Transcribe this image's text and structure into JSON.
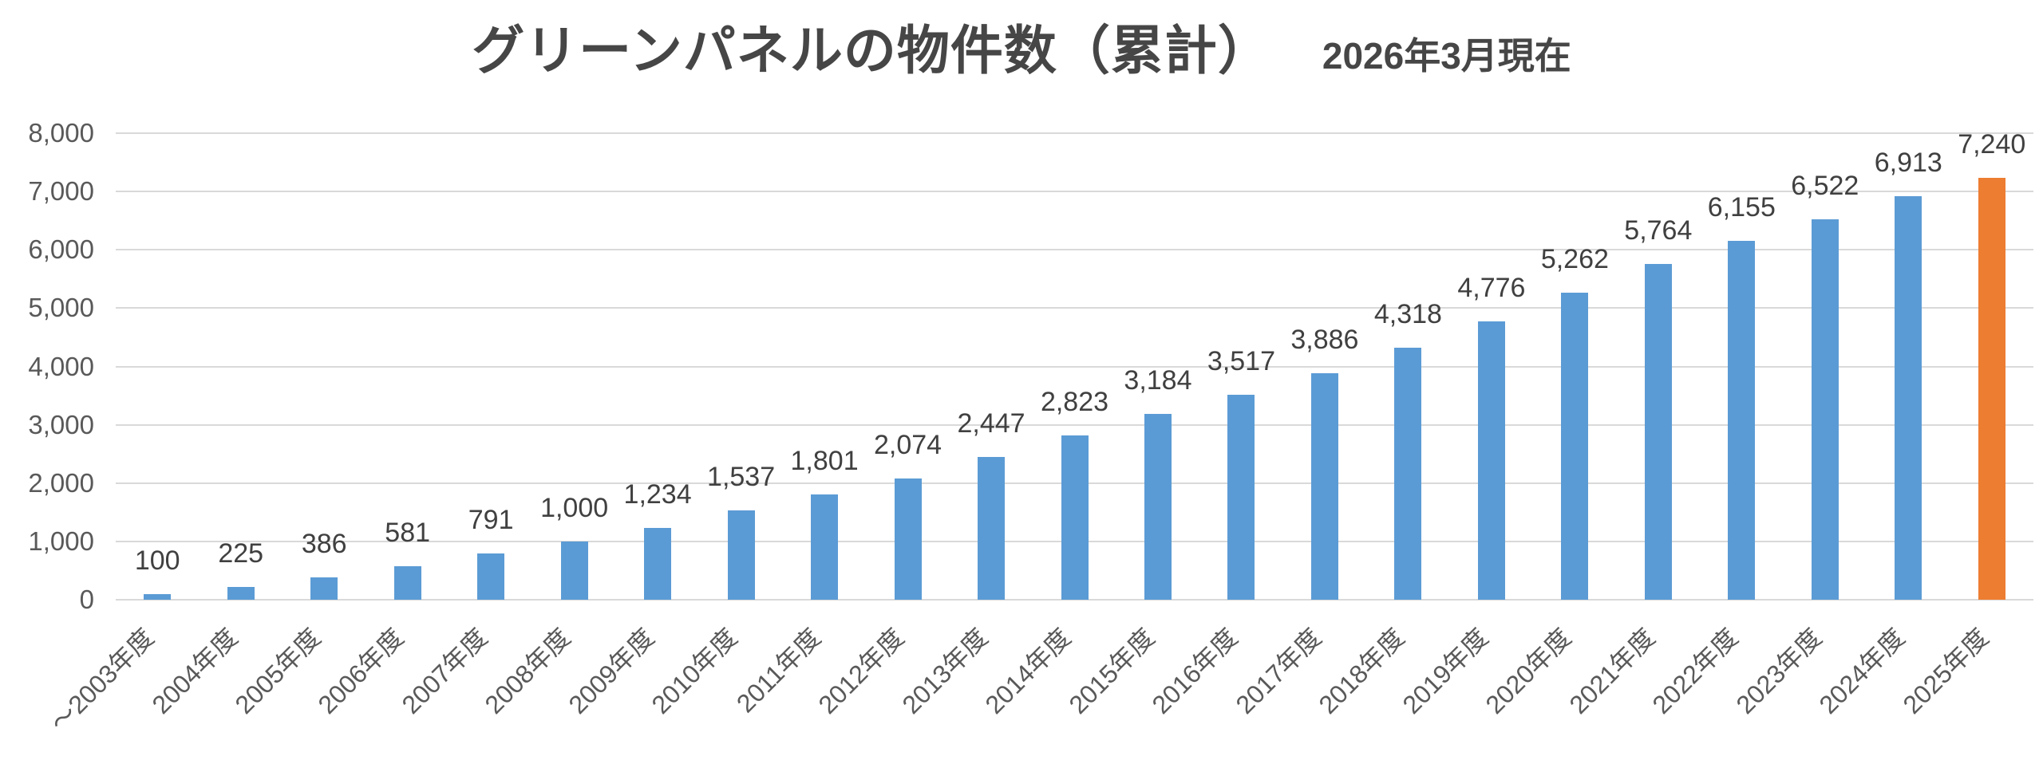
{
  "header": {
    "title": "グリーンパネルの物件数（累計）",
    "subtitle": "2026年3月現在"
  },
  "chart_data": {
    "type": "bar",
    "title": "グリーンパネルの物件数（累計）",
    "subtitle": "2026年3月現在",
    "categories": [
      "～2003年度",
      "2004年度",
      "2005年度",
      "2006年度",
      "2007年度",
      "2008年度",
      "2009年度",
      "2010年度",
      "2011年度",
      "2012年度",
      "2013年度",
      "2014年度",
      "2015年度",
      "2016年度",
      "2017年度",
      "2018年度",
      "2019年度",
      "2020年度",
      "2021年度",
      "2022年度",
      "2023年度",
      "2024年度",
      "2025年度"
    ],
    "values": [
      100,
      225,
      386,
      581,
      791,
      1000,
      1234,
      1537,
      1801,
      2074,
      2447,
      2823,
      3184,
      3517,
      3886,
      4318,
      4776,
      5262,
      5764,
      6155,
      6522,
      6913,
      7240
    ],
    "value_labels": [
      "100",
      "225",
      "386",
      "581",
      "791",
      "1,000",
      "1,234",
      "1,537",
      "1,801",
      "2,074",
      "2,447",
      "2,823",
      "3,184",
      "3,517",
      "3,886",
      "4,318",
      "4,776",
      "5,262",
      "5,764",
      "6,155",
      "6,522",
      "6,913",
      "7,240"
    ],
    "ylim": [
      0,
      8000
    ],
    "ytick_interval": 1000,
    "ytick_labels": [
      "0",
      "1,000",
      "2,000",
      "3,000",
      "4,000",
      "5,000",
      "6,000",
      "7,000",
      "8,000"
    ],
    "grid": true,
    "legend": "none",
    "xlabel": "",
    "ylabel": "",
    "highlight_index": 22,
    "colors": {
      "bar": "#5B9BD5",
      "highlight": "#ED7D31",
      "gridline": "#D9D9D9",
      "axis_text": "#595959",
      "value_text": "#404040",
      "title_text": "#464646"
    }
  }
}
